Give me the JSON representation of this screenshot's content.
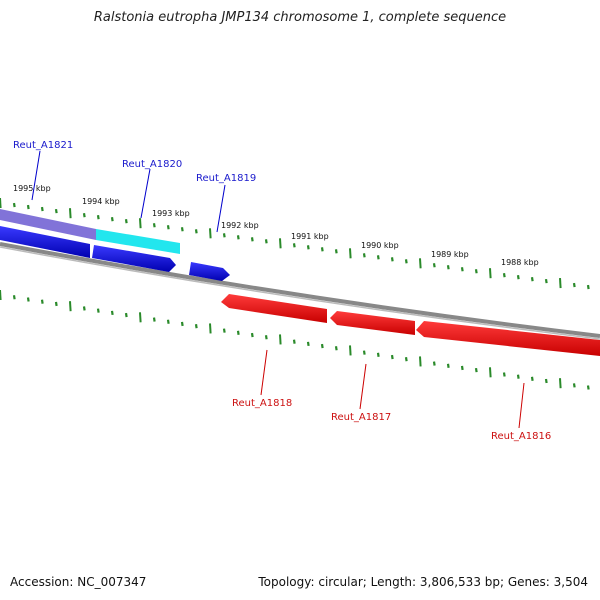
{
  "title": "Ralstonia eutropha JMP134 chromosome 1, complete sequence",
  "footer": {
    "accession": "Accession: NC_007347",
    "summary": "Topology: circular; Length: 3,806,533 bp; Genes: 3,504"
  },
  "ticks": [
    {
      "label": "1995 kbp"
    },
    {
      "label": "1994 kbp"
    },
    {
      "label": "1993 kbp"
    },
    {
      "label": "1992 kbp"
    },
    {
      "label": "1991 kbp"
    },
    {
      "label": "1990 kbp"
    },
    {
      "label": "1989 kbp"
    },
    {
      "label": "1988 kbp"
    }
  ],
  "genes": [
    {
      "name": "Reut_A1821",
      "strand": "forward",
      "color": "#1a1acc"
    },
    {
      "name": "Reut_A1820",
      "strand": "forward",
      "color": "#1a1acc"
    },
    {
      "name": "Reut_A1819",
      "strand": "forward",
      "color": "#1a1acc"
    },
    {
      "name": "Reut_A1818",
      "strand": "reverse",
      "color": "#cc1111"
    },
    {
      "name": "Reut_A1817",
      "strand": "reverse",
      "color": "#cc1111"
    },
    {
      "name": "Reut_A1816",
      "strand": "reverse",
      "color": "#cc1111"
    }
  ],
  "colors": {
    "forward_cds": "#0000ee",
    "reverse_cds": "#ee0000",
    "backbone": "#888888",
    "tick_mark": "#2a8a2a",
    "highlight_a": "#7a6bd6",
    "highlight_b": "#22e6ee"
  }
}
